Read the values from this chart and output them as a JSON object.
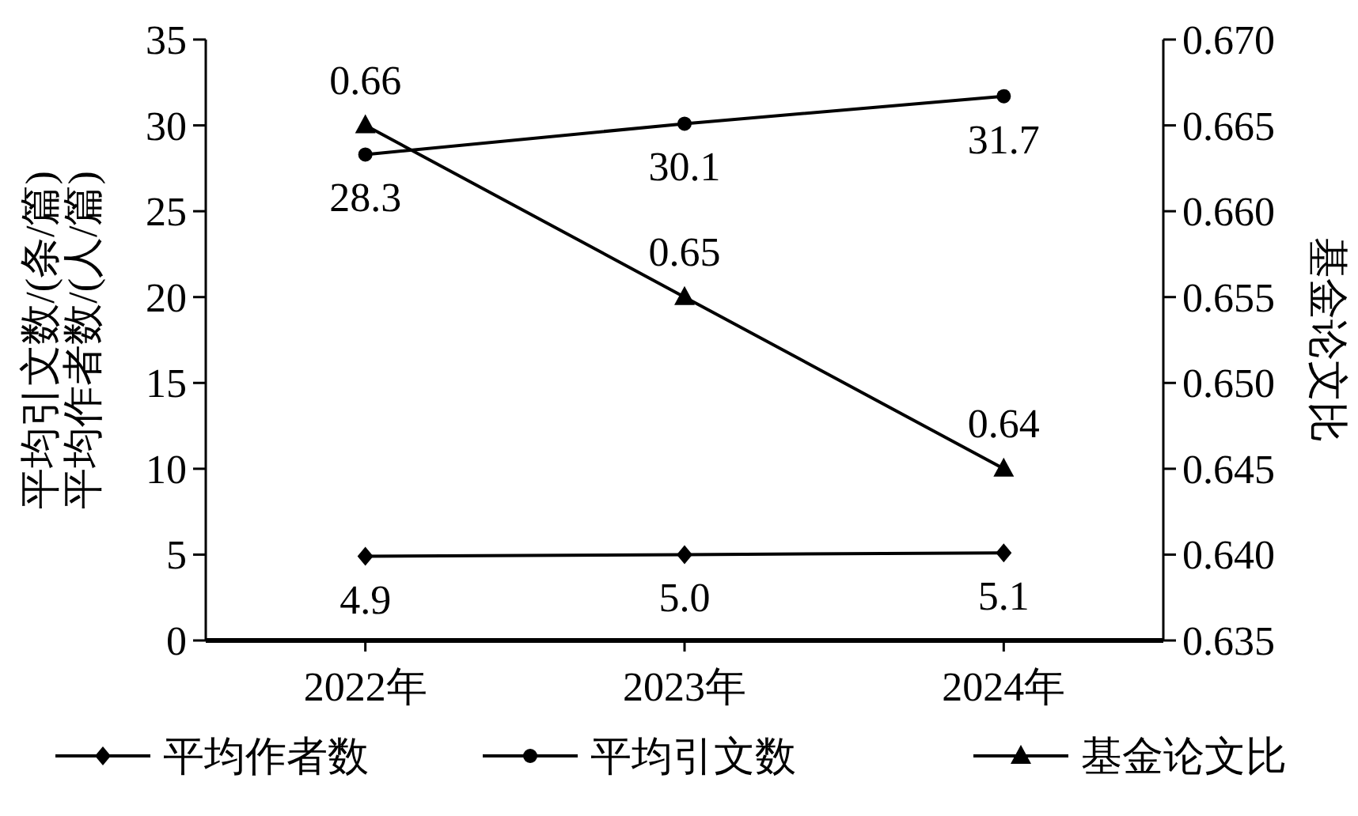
{
  "chart_data": {
    "type": "line",
    "categories": [
      "2022年",
      "2023年",
      "2024年"
    ],
    "ylabel": "平均引文数/(条/篇)\n平均作者数/(人/篇)",
    "y2label": "基金论文比",
    "ylim": [
      0,
      35
    ],
    "yticks": [
      0,
      5,
      10,
      15,
      20,
      25,
      30,
      35
    ],
    "y2lim": [
      0.635,
      0.67
    ],
    "y2ticks": [
      {
        "value": 0.635,
        "label": "0.635"
      },
      {
        "value": 0.64,
        "label": "0.640"
      },
      {
        "value": 0.645,
        "label": "0.645"
      },
      {
        "value": 0.65,
        "label": "0.650"
      },
      {
        "value": 0.655,
        "label": "0.655"
      },
      {
        "value": 0.66,
        "label": "0.660"
      },
      {
        "value": 0.665,
        "label": "0.665"
      },
      {
        "value": 0.67,
        "label": "0.670"
      }
    ],
    "series": [
      {
        "name": "平均作者数",
        "color": "#000000",
        "marker": "diamond",
        "values": [
          4.9,
          5.0,
          5.1
        ],
        "value_labels": [
          "4.9",
          "5.0",
          "5.1"
        ]
      },
      {
        "name": "平均引文数",
        "color": "#000000",
        "marker": "circle",
        "values": [
          28.3,
          30.1,
          31.7
        ],
        "value_labels": [
          "28.3",
          "30.1",
          "31.7"
        ]
      },
      {
        "name": "基金论文比",
        "color": "#000000",
        "marker": "triangle",
        "axis": "y2",
        "values": [
          0.665,
          0.655,
          0.645
        ],
        "value_labels": [
          "0.66",
          "0.65",
          "0.64"
        ]
      }
    ],
    "legend": "bottom",
    "grid": false
  }
}
